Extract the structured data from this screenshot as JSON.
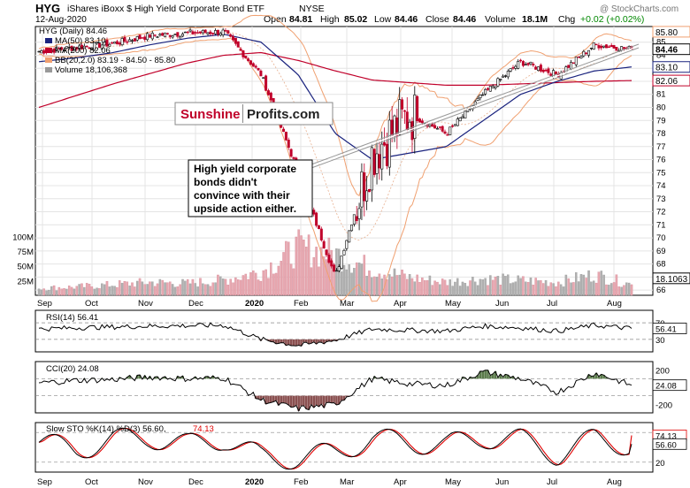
{
  "header": {
    "ticker": "HYG",
    "name": "iShares iBoxx $ High Yield Corporate Bond ETF",
    "exchange": "NYSE",
    "date": "12-Aug-2020",
    "watermark": "@ StockCharts.com",
    "quote": {
      "open_label": "Open",
      "open": "84.81",
      "high_label": "High",
      "high": "85.02",
      "low_label": "Low",
      "low": "84.46",
      "close_label": "Close",
      "close": "84.46",
      "volume_label": "Volume",
      "volume": "18.1M",
      "chg_label": "Chg",
      "chg": "+0.02 (+0.02%)"
    }
  },
  "legend": {
    "main": "HYG (Daily) 84.46",
    "ma50": "MA(50) 83.10",
    "ma200": "MA(200) 82.06",
    "bb": "BB(20,2.0) 83.19 - 84.50 - 85.80",
    "volume": "Volume 18,106,368"
  },
  "annotation": {
    "logo_part1": "Sunshine",
    "logo_part2": "Profits.com",
    "text": [
      "High yield corporate",
      "bonds didn't",
      "convince with their",
      "upside action either."
    ]
  },
  "price_axis": {
    "labels": [
      "85",
      "84",
      "83",
      "82",
      "81",
      "80",
      "79",
      "78",
      "77",
      "76",
      "75",
      "74",
      "73",
      "72",
      "71",
      "70",
      "69",
      "68",
      "67",
      "66"
    ],
    "min": 65.6,
    "max": 86.2,
    "markers": [
      {
        "value": 85.8,
        "label": "85.80",
        "color": "#f0a070",
        "filled": false
      },
      {
        "value": 84.46,
        "label": "84.46",
        "color": "#000000",
        "filled": true
      },
      {
        "value": 83.1,
        "label": "83.10",
        "color": "#1a237e",
        "filled": false
      },
      {
        "value": 82.06,
        "label": "82.06",
        "color": "#c0002a",
        "filled": false
      },
      {
        "value": 66.9,
        "label": "18.1063",
        "color": "#000000",
        "filled": false
      }
    ]
  },
  "volume_axis": {
    "labels": [
      "100M",
      "75M",
      "50M",
      "25M"
    ],
    "values": [
      100,
      75,
      50,
      25
    ],
    "max": 150
  },
  "x_axis": {
    "labels": [
      "Sep",
      "Oct",
      "Nov",
      "Dec",
      "2020",
      "Feb",
      "Mar",
      "Apr",
      "May",
      "Jun",
      "Jul",
      "Aug"
    ],
    "bold_index": 4
  },
  "rsi": {
    "label": "RSI(14) 56.41",
    "axis_labels": [
      "70",
      "56.41",
      "30"
    ],
    "axis_values": [
      70,
      56.41,
      30
    ],
    "current_badge": "56.41"
  },
  "cci": {
    "label": "CCI(20) 24.08",
    "axis_labels": [
      "200",
      "24.08",
      "-200"
    ],
    "axis_values": [
      200,
      24.08,
      -200
    ],
    "current_badge": "24.08"
  },
  "sto": {
    "label_k": "Slow STO %K(14) %D(3) 56.60,",
    "label_d": "74.13",
    "axis_labels": [
      "74.13",
      "56.60",
      "20"
    ],
    "axis_values": [
      74.13,
      56.6,
      20
    ]
  },
  "colors": {
    "up": "#000000",
    "down": "#c0002a",
    "ma50": "#1a237e",
    "ma200": "#c0002a",
    "bb": "#f0a070",
    "bb_mid": "#e8b090",
    "vol_up": "#b0b0b0",
    "vol_down": "#e8a8b0",
    "rsi_fill": "#5a7a4a",
    "cci_fill_up": "#5a7a4a",
    "cci_fill_down": "#8a5050",
    "sto_k": "#000000",
    "sto_d": "#e00000",
    "logo_red": "#c0002a"
  },
  "chart_data": {
    "type": "line",
    "title": "HYG iShares iBoxx $ High Yield Corporate Bond ETF NYSE",
    "x_range": [
      "2019-09",
      "2020-08-12"
    ],
    "x": [
      "Sep",
      "Oct",
      "Nov",
      "Dec",
      "Jan",
      "Feb",
      "Mar-early",
      "Mar-mid",
      "Mar-late",
      "Apr-early",
      "Apr-mid",
      "May",
      "Jun-early",
      "Jun-mid",
      "Jul",
      "Aug-early",
      "Aug-12"
    ],
    "series": [
      {
        "name": "HYG (Daily)",
        "values": [
          84.3,
          84.6,
          84.9,
          85.5,
          85.7,
          85.8,
          82.5,
          75.0,
          67.0,
          76.5,
          79.5,
          78.0,
          81.0,
          83.5,
          82.5,
          84.8,
          84.46
        ]
      },
      {
        "name": "MA(50)",
        "values": [
          83.5,
          83.8,
          84.2,
          84.8,
          85.3,
          85.6,
          85.0,
          82.5,
          78.0,
          76.0,
          76.5,
          77.0,
          79.0,
          81.0,
          82.0,
          82.8,
          83.1
        ]
      },
      {
        "name": "MA(200)",
        "values": [
          80.0,
          80.9,
          81.8,
          82.6,
          83.4,
          84.0,
          84.2,
          83.6,
          82.8,
          82.1,
          81.9,
          81.7,
          81.7,
          81.8,
          81.9,
          82.0,
          82.06
        ]
      }
    ],
    "price_ylim": [
      66,
      86
    ],
    "volume_millions": [
      12,
      14,
      18,
      22,
      20,
      26,
      40,
      80,
      70,
      45,
      30,
      22,
      28,
      25,
      22,
      35,
      18.1
    ],
    "rsi": [
      55,
      58,
      60,
      62,
      63,
      64,
      30,
      15,
      28,
      55,
      52,
      50,
      62,
      58,
      50,
      64,
      56.41
    ],
    "cci": [
      50,
      80,
      90,
      120,
      100,
      110,
      -150,
      -250,
      -200,
      100,
      40,
      20,
      180,
      100,
      -60,
      170,
      24.08
    ],
    "slow_sto_k": [
      70,
      40,
      80,
      90,
      60,
      85,
      10,
      5,
      30,
      85,
      70,
      60,
      90,
      80,
      20,
      85,
      56.6
    ],
    "slow_sto_d": [
      68,
      45,
      75,
      88,
      62,
      82,
      15,
      8,
      25,
      80,
      72,
      62,
      88,
      82,
      25,
      88,
      74.13
    ]
  }
}
